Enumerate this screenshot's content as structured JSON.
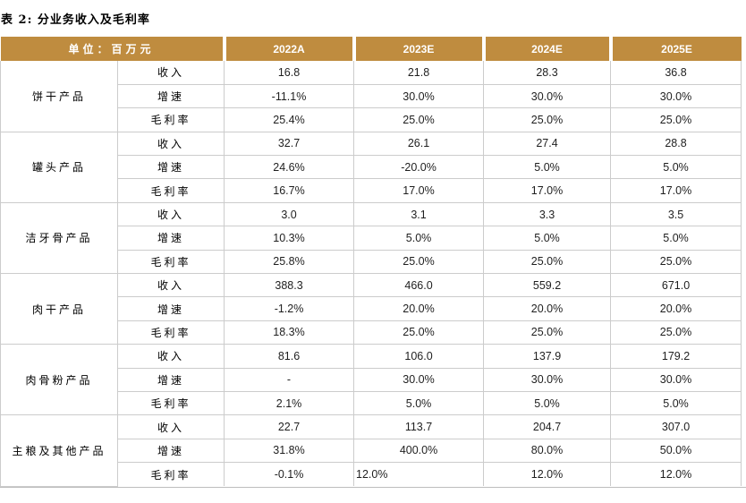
{
  "title": "表 2: 分业务收入及毛利率",
  "table": {
    "unit_header": "单位：百万元",
    "year_headers": [
      "2022A",
      "2023E",
      "2024E",
      "2025E"
    ],
    "row_labels": [
      "收入",
      "增速",
      "毛利率"
    ],
    "groups": [
      {
        "name": "饼干产品",
        "rows": [
          [
            "16.8",
            "21.8",
            "28.3",
            "36.8"
          ],
          [
            "-11.1%",
            "30.0%",
            "30.0%",
            "30.0%"
          ],
          [
            "25.4%",
            "25.0%",
            "25.0%",
            "25.0%"
          ]
        ]
      },
      {
        "name": "罐头产品",
        "rows": [
          [
            "32.7",
            "26.1",
            "27.4",
            "28.8"
          ],
          [
            "24.6%",
            "-20.0%",
            "5.0%",
            "5.0%"
          ],
          [
            "16.7%",
            "17.0%",
            "17.0%",
            "17.0%"
          ]
        ]
      },
      {
        "name": "洁牙骨产品",
        "rows": [
          [
            "3.0",
            "3.1",
            "3.3",
            "3.5"
          ],
          [
            "10.3%",
            "5.0%",
            "5.0%",
            "5.0%"
          ],
          [
            "25.8%",
            "25.0%",
            "25.0%",
            "25.0%"
          ]
        ]
      },
      {
        "name": "肉干产品",
        "rows": [
          [
            "388.3",
            "466.0",
            "559.2",
            "671.0"
          ],
          [
            "-1.2%",
            "20.0%",
            "20.0%",
            "20.0%"
          ],
          [
            "18.3%",
            "25.0%",
            "25.0%",
            "25.0%"
          ]
        ]
      },
      {
        "name": "肉骨粉产品",
        "rows": [
          [
            "81.6",
            "106.0",
            "137.9",
            "179.2"
          ],
          [
            "-",
            "30.0%",
            "30.0%",
            "30.0%"
          ],
          [
            "2.1%",
            "5.0%",
            "5.0%",
            "5.0%"
          ]
        ]
      },
      {
        "name": "主粮及其他产品",
        "rows": [
          [
            "22.7",
            "113.7",
            "204.7",
            "307.0"
          ],
          [
            "31.8%",
            "400.0%",
            "80.0%",
            "50.0%"
          ],
          [
            "-0.1%",
            "12.0%",
            "12.0%",
            "12.0%"
          ]
        ]
      }
    ]
  },
  "colors": {
    "header_bg": "#BF8C3F",
    "header_text": "#FFFFFF",
    "border": "#CCCCCC"
  }
}
